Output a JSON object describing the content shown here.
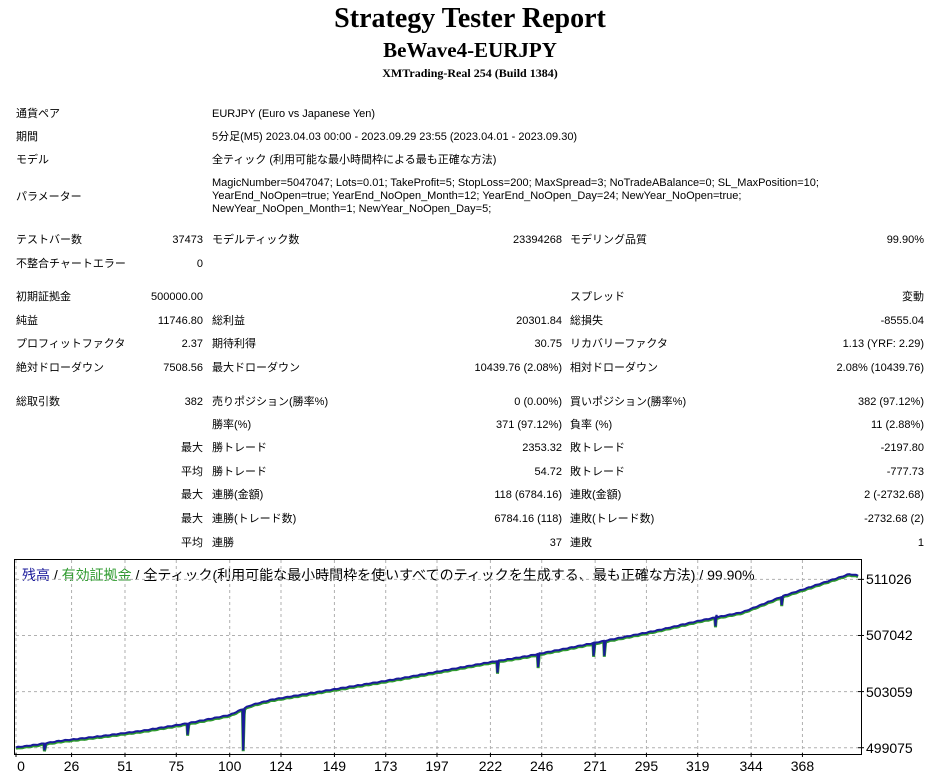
{
  "header": {
    "title": "Strategy Tester Report",
    "ea": "BeWave4-EURJPY",
    "server": "XMTrading-Real 254 (Build 1384)"
  },
  "info": {
    "pair_label": "通貨ペア",
    "pair_value": "EURJPY (Euro vs Japanese Yen)",
    "period_label": "期間",
    "period_value": "5分足(M5) 2023.04.03 00:00 - 2023.09.29 23:55 (2023.04.01 - 2023.09.30)",
    "model_label": "モデル",
    "model_value": "全ティック (利用可能な最小時間枠による最も正確な方法)",
    "params_label": "パラメーター",
    "params_lines": [
      "MagicNumber=5047047; Lots=0.01; TakeProfit=5; StopLoss=200; MaxSpread=3; NoTradeABalance=0; SL_MaxPosition=10;",
      "YearEnd_NoOpen=true; YearEnd_NoOpen_Month=12; YearEnd_NoOpen_Day=24; NewYear_NoOpen=true;",
      "NewYear_NoOpen_Month=1; NewYear_NoOpen_Day=5;"
    ]
  },
  "stats": {
    "bars_label": "テストバー数",
    "bars_value": "37473",
    "ticks_label": "モデルティック数",
    "ticks_value": "23394268",
    "quality_label": "モデリング品質",
    "quality_value": "99.90%",
    "mismatch_label": "不整合チャートエラー",
    "mismatch_value": "0",
    "deposit_label": "初期証拠金",
    "deposit_value": "500000.00",
    "spread_label": "スプレッド",
    "spread_value": "変動",
    "net_label": "純益",
    "net_value": "11746.80",
    "gross_profit_label": "総利益",
    "gross_profit_value": "20301.84",
    "gross_loss_label": "総損失",
    "gross_loss_value": "-8555.04",
    "pf_label": "プロフィットファクタ",
    "pf_value": "2.37",
    "expected_label": "期待利得",
    "expected_value": "30.75",
    "recovery_label": "リカバリーファクタ",
    "recovery_value": "1.13 (YRF: 2.29)",
    "abs_dd_label": "絶対ドローダウン",
    "abs_dd_value": "7508.56",
    "max_dd_label": "最大ドローダウン",
    "max_dd_value": "10439.76 (2.08%)",
    "rel_dd_label": "相対ドローダウン",
    "rel_dd_value": "2.08% (10439.76)",
    "total_trades_label": "総取引数",
    "total_trades_value": "382",
    "short_label": "売りポジション(勝率%)",
    "short_value": "0 (0.00%)",
    "long_label": "買いポジション(勝率%)",
    "long_value": "382 (97.12%)",
    "winrate_label": "勝率(%)",
    "winrate_value": "371 (97.12%)",
    "lossrate_label": "負率 (%)",
    "lossrate_value": "11 (2.88%)",
    "max_word": "最大",
    "avg_word": "平均",
    "largest_win_label": "勝トレード",
    "largest_win_value": "2353.32",
    "largest_loss_label": "敗トレード",
    "largest_loss_value": "-2197.80",
    "avg_win_label": "勝トレード",
    "avg_win_value": "54.72",
    "avg_loss_label": "敗トレード",
    "avg_loss_value": "-777.73",
    "max_cons_wins_amt_label": "連勝(金額)",
    "max_cons_wins_amt_value": "118 (6784.16)",
    "max_cons_loss_amt_label": "連敗(金額)",
    "max_cons_loss_amt_value": "2 (-2732.68)",
    "max_cons_wins_cnt_label": "連勝(トレード数)",
    "max_cons_wins_cnt_value": "6784.16 (118)",
    "max_cons_loss_cnt_label": "連敗(トレード数)",
    "max_cons_loss_cnt_value": "-2732.68 (2)",
    "avg_cons_wins_label": "連勝",
    "avg_cons_wins_value": "37",
    "avg_cons_loss_label": "連敗",
    "avg_cons_loss_value": "1"
  },
  "chart_data": {
    "type": "line",
    "title_parts": [
      "残高",
      " / ",
      "有効証拠金",
      " / 全ティック(利用可能な最小時間枠を使いすべてのティックを生成する、最も正確な方法) / 99.90%"
    ],
    "series": [
      {
        "name": "残高",
        "color": "#1a1a9a"
      },
      {
        "name": "有効証拠金",
        "color": "#2e9a2e"
      }
    ],
    "y_ticks": [
      499075,
      503059,
      507042,
      511026
    ],
    "x_ticks": [
      0,
      26,
      51,
      75,
      100,
      124,
      149,
      173,
      197,
      222,
      246,
      271,
      295,
      319,
      344,
      368
    ],
    "xlim": [
      0,
      394
    ],
    "ylim": [
      498700,
      512400
    ],
    "balance": [
      [
        0,
        499100
      ],
      [
        10,
        499300
      ],
      [
        20,
        499550
      ],
      [
        40,
        499900
      ],
      [
        60,
        500300
      ],
      [
        80,
        500800
      ],
      [
        100,
        501400
      ],
      [
        110,
        502100
      ],
      [
        120,
        502500
      ],
      [
        140,
        503000
      ],
      [
        160,
        503500
      ],
      [
        180,
        504000
      ],
      [
        200,
        504550
      ],
      [
        220,
        505100
      ],
      [
        240,
        505600
      ],
      [
        260,
        506200
      ],
      [
        280,
        506800
      ],
      [
        300,
        507400
      ],
      [
        320,
        508100
      ],
      [
        340,
        508700
      ],
      [
        350,
        509300
      ],
      [
        360,
        509900
      ],
      [
        370,
        510400
      ],
      [
        380,
        510900
      ],
      [
        390,
        511400
      ],
      [
        394,
        511300
      ]
    ],
    "dips": [
      [
        13,
        499200,
        498900
      ],
      [
        80,
        500700,
        500000
      ],
      [
        106,
        501500,
        498900
      ],
      [
        225,
        505150,
        504400
      ],
      [
        244,
        505700,
        504800
      ],
      [
        270,
        506400,
        505600
      ],
      [
        275,
        506500,
        505600
      ],
      [
        327,
        508500,
        507700
      ],
      [
        358,
        509800,
        509200
      ]
    ]
  }
}
